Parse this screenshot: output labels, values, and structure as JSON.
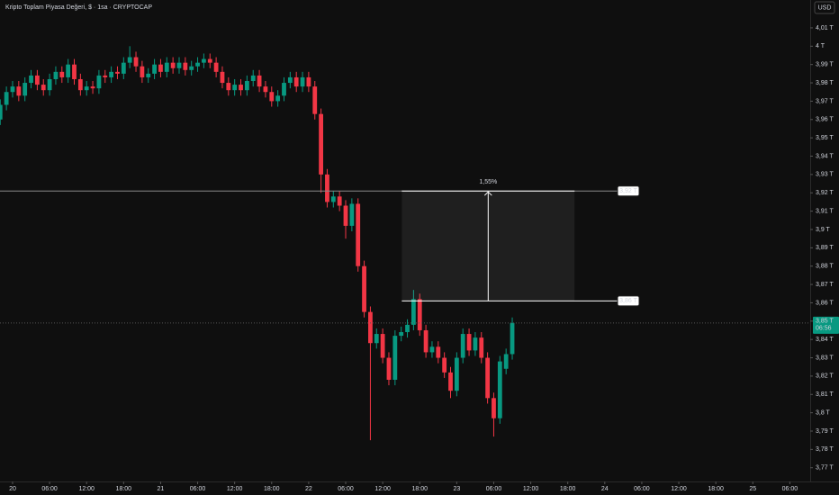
{
  "chart_data": {
    "type": "candlestick",
    "title": "Kripto Toplam Piyasa Değeri, $ · 1sa · CRYPTOCAP",
    "currency_button": "USD",
    "up_color": "#089981",
    "down_color": "#f23645",
    "x": [
      -2,
      -1,
      0,
      1,
      2,
      3,
      4,
      5,
      6,
      7,
      8,
      9,
      10,
      11,
      12,
      13,
      14,
      15,
      16,
      17,
      18,
      19,
      20,
      21,
      22,
      23,
      24,
      25,
      26,
      27,
      28,
      29,
      30,
      31,
      32,
      33,
      34,
      35,
      36,
      37,
      38,
      39,
      40,
      41,
      42,
      43,
      44,
      45,
      46,
      47,
      48,
      49,
      50,
      51,
      52,
      53,
      54,
      55,
      56,
      57,
      58,
      59,
      60,
      61,
      62,
      63,
      64,
      65,
      66,
      67,
      68,
      69,
      70,
      71,
      72,
      73,
      74,
      75,
      76,
      77,
      78,
      79,
      80,
      81
    ],
    "open": [
      3.96,
      3.968,
      3.975,
      3.978,
      3.973,
      3.98,
      3.984,
      3.979,
      3.976,
      3.982,
      3.986,
      3.983,
      3.99,
      3.982,
      3.976,
      3.978,
      3.977,
      3.984,
      3.983,
      3.986,
      3.985,
      3.991,
      3.994,
      3.989,
      3.983,
      3.985,
      3.99,
      3.986,
      3.991,
      3.988,
      3.991,
      3.987,
      3.989,
      3.991,
      3.993,
      3.991,
      3.986,
      3.98,
      3.976,
      3.979,
      3.976,
      3.981,
      3.984,
      3.978,
      3.975,
      3.97,
      3.973,
      3.98,
      3.983,
      3.978,
      3.983,
      3.978,
      3.963,
      3.93,
      3.915,
      3.918,
      3.913,
      3.902,
      3.914,
      3.88,
      3.855,
      3.838,
      3.843,
      3.83,
      3.818,
      3.842,
      3.844,
      3.848,
      3.862,
      3.845,
      3.833,
      3.836,
      3.83,
      3.822,
      3.812,
      3.83,
      3.843,
      3.834,
      3.841,
      3.83,
      3.808,
      3.797,
      3.824,
      3.832
    ],
    "high": [
      3.971,
      3.978,
      3.981,
      3.981,
      3.983,
      3.987,
      3.987,
      3.982,
      3.985,
      3.989,
      3.989,
      3.993,
      3.993,
      3.985,
      3.981,
      3.981,
      3.987,
      3.987,
      3.989,
      3.989,
      3.994,
      4.0,
      3.997,
      3.992,
      3.988,
      3.993,
      3.993,
      3.994,
      3.994,
      3.994,
      3.994,
      3.992,
      3.994,
      3.996,
      3.996,
      3.994,
      3.989,
      3.983,
      3.982,
      3.982,
      3.984,
      3.987,
      3.987,
      3.981,
      3.978,
      3.976,
      3.983,
      3.986,
      3.986,
      3.986,
      3.986,
      3.981,
      3.966,
      3.933,
      3.921,
      3.921,
      3.916,
      3.917,
      3.917,
      3.883,
      3.858,
      3.846,
      3.846,
      3.833,
      3.845,
      3.847,
      3.851,
      3.867,
      3.865,
      3.848,
      3.839,
      3.839,
      3.833,
      3.825,
      3.833,
      3.846,
      3.846,
      3.844,
      3.844,
      3.833,
      3.811,
      3.831,
      3.835,
      3.852
    ],
    "low": [
      3.957,
      3.965,
      3.972,
      3.97,
      3.97,
      3.977,
      3.976,
      3.973,
      3.973,
      3.979,
      3.98,
      3.98,
      3.979,
      3.973,
      3.973,
      3.974,
      3.974,
      3.98,
      3.98,
      3.982,
      3.982,
      3.988,
      3.986,
      3.98,
      3.98,
      3.982,
      3.983,
      3.983,
      3.985,
      3.985,
      3.984,
      3.984,
      3.986,
      3.988,
      3.988,
      3.983,
      3.977,
      3.973,
      3.973,
      3.973,
      3.973,
      3.978,
      3.975,
      3.972,
      3.967,
      3.967,
      3.97,
      3.977,
      3.975,
      3.975,
      3.975,
      3.96,
      3.92,
      3.912,
      3.912,
      3.91,
      3.895,
      3.899,
      3.877,
      3.852,
      3.785,
      3.835,
      3.827,
      3.815,
      3.815,
      3.839,
      3.841,
      3.845,
      3.842,
      3.83,
      3.83,
      3.827,
      3.819,
      3.808,
      3.809,
      3.827,
      3.831,
      3.831,
      3.827,
      3.805,
      3.787,
      3.794,
      3.821,
      3.829
    ],
    "close": [
      3.968,
      3.975,
      3.978,
      3.973,
      3.98,
      3.984,
      3.979,
      3.976,
      3.982,
      3.986,
      3.983,
      3.99,
      3.982,
      3.976,
      3.978,
      3.977,
      3.984,
      3.983,
      3.986,
      3.985,
      3.991,
      3.994,
      3.989,
      3.983,
      3.985,
      3.99,
      3.986,
      3.991,
      3.988,
      3.991,
      3.987,
      3.989,
      3.991,
      3.993,
      3.991,
      3.986,
      3.98,
      3.976,
      3.979,
      3.976,
      3.981,
      3.984,
      3.978,
      3.975,
      3.97,
      3.973,
      3.98,
      3.983,
      3.978,
      3.983,
      3.978,
      3.963,
      3.93,
      3.915,
      3.918,
      3.913,
      3.902,
      3.914,
      3.88,
      3.855,
      3.838,
      3.843,
      3.83,
      3.818,
      3.842,
      3.844,
      3.848,
      3.862,
      3.845,
      3.833,
      3.836,
      3.83,
      3.822,
      3.812,
      3.83,
      3.843,
      3.834,
      3.841,
      3.83,
      3.808,
      3.797,
      3.828,
      3.832,
      3.849
    ],
    "xlim": [
      -2.04,
      129.3
    ],
    "ylim": [
      3.7625,
      4.0252
    ],
    "xticks": [
      {
        "value": 0,
        "label": "20"
      },
      {
        "value": 6,
        "label": "06:00"
      },
      {
        "value": 12,
        "label": "12:00"
      },
      {
        "value": 18,
        "label": "18:00"
      },
      {
        "value": 24,
        "label": "21"
      },
      {
        "value": 30,
        "label": "06:00"
      },
      {
        "value": 36,
        "label": "12:00"
      },
      {
        "value": 42,
        "label": "18:00"
      },
      {
        "value": 48,
        "label": "22"
      },
      {
        "value": 54,
        "label": "06:00"
      },
      {
        "value": 60,
        "label": "12:00"
      },
      {
        "value": 66,
        "label": "18:00"
      },
      {
        "value": 72,
        "label": "23"
      },
      {
        "value": 78,
        "label": "06:00"
      },
      {
        "value": 84,
        "label": "12:00"
      },
      {
        "value": 90,
        "label": "18:00"
      },
      {
        "value": 96,
        "label": "24"
      },
      {
        "value": 102,
        "label": "06:00"
      },
      {
        "value": 108,
        "label": "12:00"
      },
      {
        "value": 114,
        "label": "18:00"
      },
      {
        "value": 120,
        "label": "25"
      },
      {
        "value": 126,
        "label": "06:00"
      }
    ],
    "yticks": [
      {
        "value": 4.01,
        "label": "4,01 T"
      },
      {
        "value": 4.0,
        "label": "4 T"
      },
      {
        "value": 3.99,
        "label": "3,99 T"
      },
      {
        "value": 3.98,
        "label": "3,98 T"
      },
      {
        "value": 3.97,
        "label": "3,97 T"
      },
      {
        "value": 3.96,
        "label": "3,96 T"
      },
      {
        "value": 3.95,
        "label": "3,95 T"
      },
      {
        "value": 3.94,
        "label": "3,94 T"
      },
      {
        "value": 3.93,
        "label": "3,93 T"
      },
      {
        "value": 3.92,
        "label": "3,92 T"
      },
      {
        "value": 3.91,
        "label": "3,91 T"
      },
      {
        "value": 3.9,
        "label": "3,9 T"
      },
      {
        "value": 3.89,
        "label": "3,89 T"
      },
      {
        "value": 3.88,
        "label": "3,88 T"
      },
      {
        "value": 3.87,
        "label": "3,87 T"
      },
      {
        "value": 3.86,
        "label": "3,86 T"
      },
      {
        "value": 3.85,
        "label": "3,85 T"
      },
      {
        "value": 3.84,
        "label": "3,84 T"
      },
      {
        "value": 3.83,
        "label": "3,83 T"
      },
      {
        "value": 3.82,
        "label": "3,82 T"
      },
      {
        "value": 3.81,
        "label": "3,81 T"
      },
      {
        "value": 3.8,
        "label": "3,8 T"
      },
      {
        "value": 3.79,
        "label": "3,79 T"
      },
      {
        "value": 3.78,
        "label": "3,78 T"
      },
      {
        "value": 3.77,
        "label": "3,77 T"
      }
    ],
    "measure": {
      "top": 3.921,
      "bottom": 3.861,
      "x_start": 63.1,
      "x_end": 91.1,
      "label": "1,55%",
      "top_label": "3,92 T",
      "bottom_label": "3,86 T"
    },
    "last_price": {
      "value": 3.849,
      "label": "3,85 T",
      "countdown": "06:56"
    }
  }
}
